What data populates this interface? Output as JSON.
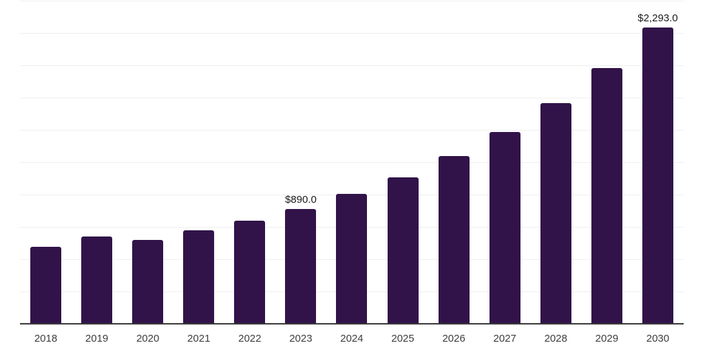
{
  "chart_data": {
    "type": "bar",
    "title": "",
    "xlabel": "",
    "ylabel": "",
    "categories": [
      "2018",
      "2019",
      "2020",
      "2021",
      "2022",
      "2023",
      "2024",
      "2025",
      "2026",
      "2027",
      "2028",
      "2029",
      "2030"
    ],
    "values": [
      595,
      678,
      647,
      725,
      796,
      890,
      1005,
      1135,
      1300,
      1484,
      1710,
      1977,
      2293
    ],
    "data_labels": [
      "",
      "",
      "",
      "",
      "",
      "$890.0",
      "",
      "",
      "",
      "",
      "",
      "",
      "$2,293.0"
    ],
    "ylim": [
      0,
      2500
    ],
    "gridline_step": 250,
    "grid": true,
    "legend": false,
    "colors": {
      "bar": "#311349",
      "gridline": "#efefef",
      "axis_line": "#3a3a3a",
      "tick_label": "#3d3d3d",
      "data_label": "#1a1a1a",
      "background": "#ffffff"
    }
  }
}
